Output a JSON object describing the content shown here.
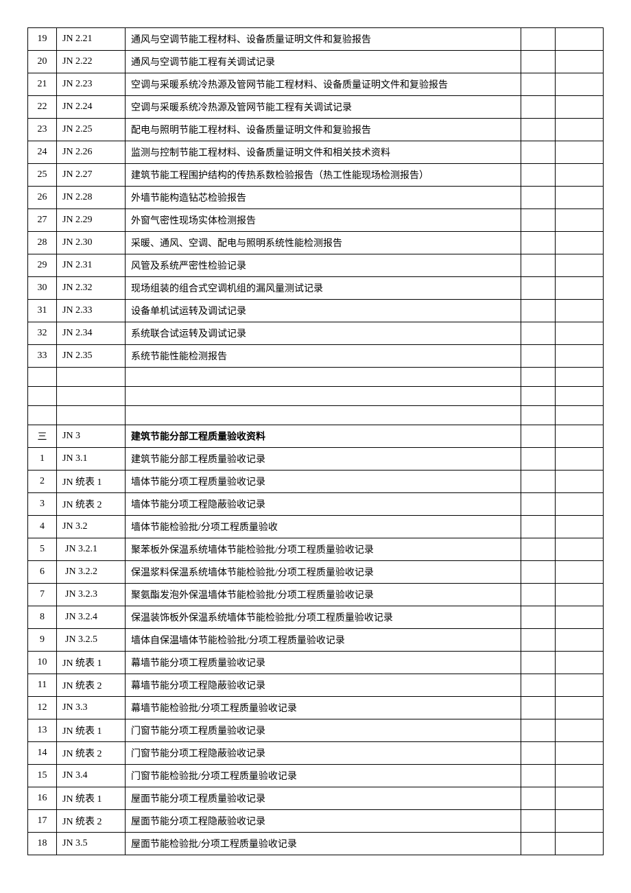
{
  "rows": [
    {
      "num": "19",
      "code": "JN 2.21",
      "desc": "通风与空调节能工程材料、设备质量证明文件和复验报告"
    },
    {
      "num": "20",
      "code": "JN 2.22",
      "desc": "通风与空调节能工程有关调试记录"
    },
    {
      "num": "21",
      "code": "JN 2.23",
      "desc": "空调与采暖系统冷热源及管网节能工程材料、设备质量证明文件和复验报告"
    },
    {
      "num": "22",
      "code": "JN 2.24",
      "desc": "空调与采暖系统冷热源及管网节能工程有关调试记录"
    },
    {
      "num": "23",
      "code": "JN 2.25",
      "desc": "配电与照明节能工程材料、设备质量证明文件和复验报告"
    },
    {
      "num": "24",
      "code": "JN 2.26",
      "desc": "监测与控制节能工程材料、设备质量证明文件和相关技术资料"
    },
    {
      "num": "25",
      "code": "JN 2.27",
      "desc": "建筑节能工程围护结构的传热系数检验报告（热工性能现场检测报告）"
    },
    {
      "num": "26",
      "code": "JN 2.28",
      "desc": "外墙节能构造钻芯检验报告"
    },
    {
      "num": "27",
      "code": "JN 2.29",
      "desc": "外窗气密性现场实体检测报告"
    },
    {
      "num": "28",
      "code": "JN 2.30",
      "desc": "采暖、通风、空调、配电与照明系统性能检测报告"
    },
    {
      "num": "29",
      "code": "JN 2.31",
      "desc": "风管及系统严密性检验记录"
    },
    {
      "num": "30",
      "code": "JN 2.32",
      "desc": "现场组装的组合式空调机组的漏风量测试记录"
    },
    {
      "num": "31",
      "code": "JN 2.33",
      "desc": "设备单机试运转及调试记录"
    },
    {
      "num": "32",
      "code": "JN 2.34",
      "desc": "系统联合试运转及调试记录"
    },
    {
      "num": "33",
      "code": "JN 2.35",
      "desc": "系统节能性能检测报告"
    },
    {
      "num": "",
      "code": "",
      "desc": ""
    },
    {
      "num": "",
      "code": "",
      "desc": ""
    },
    {
      "num": "",
      "code": "",
      "desc": ""
    },
    {
      "num": "三",
      "code": "JN  3",
      "desc": "建筑节能分部工程质量验收资料",
      "bold": true
    },
    {
      "num": "1",
      "code": "JN  3.1",
      "desc": "建筑节能分部工程质量验收记录"
    },
    {
      "num": "2",
      "code": "JN 统表 1",
      "desc": "墙体节能分项工程质量验收记录"
    },
    {
      "num": "3",
      "code": "JN 统表 2",
      "desc": "墙体节能分项工程隐蔽验收记录"
    },
    {
      "num": "4",
      "code": "JN  3.2",
      "desc": "墙体节能检验批/分项工程质量验收"
    },
    {
      "num": "5",
      "code": "JN 3.2.1",
      "desc": "聚苯板外保温系统墙体节能检验批/分项工程质量验收记录",
      "indent": true
    },
    {
      "num": "6",
      "code": "JN 3.2.2",
      "desc": "保温浆料保温系统墙体节能检验批/分项工程质量验收记录",
      "indent": true
    },
    {
      "num": "7",
      "code": "JN 3.2.3",
      "desc": "聚氨酯发泡外保温墙体节能检验批/分项工程质量验收记录",
      "indent": true
    },
    {
      "num": "8",
      "code": "JN 3.2.4",
      "desc": "保温装饰板外保温系统墙体节能检验批/分项工程质量验收记录",
      "indent": true
    },
    {
      "num": "9",
      "code": "JN 3.2.5",
      "desc": "墙体自保温墙体节能检验批/分项工程质量验收记录",
      "indent": true
    },
    {
      "num": "10",
      "code": "JN 统表 1",
      "desc": "幕墙节能分项工程质量验收记录"
    },
    {
      "num": "11",
      "code": "JN 统表 2",
      "desc": "幕墙节能分项工程隐蔽验收记录"
    },
    {
      "num": "12",
      "code": "JN  3.3",
      "desc": "幕墙节能检验批/分项工程质量验收记录"
    },
    {
      "num": "13",
      "code": "JN 统表 1",
      "desc": "门窗节能分项工程质量验收记录"
    },
    {
      "num": "14",
      "code": "JN 统表 2",
      "desc": "门窗节能分项工程隐蔽验收记录"
    },
    {
      "num": "15",
      "code": "JN  3.4",
      "desc": "门窗节能检验批/分项工程质量验收记录"
    },
    {
      "num": "16",
      "code": "JN 统表 1",
      "desc": "屋面节能分项工程质量验收记录"
    },
    {
      "num": "17",
      "code": "JN 统表 2",
      "desc": "屋面节能分项工程隐蔽验收记录"
    },
    {
      "num": "18",
      "code": "JN  3.5",
      "desc": "屋面节能检验批/分项工程质量验收记录"
    }
  ]
}
